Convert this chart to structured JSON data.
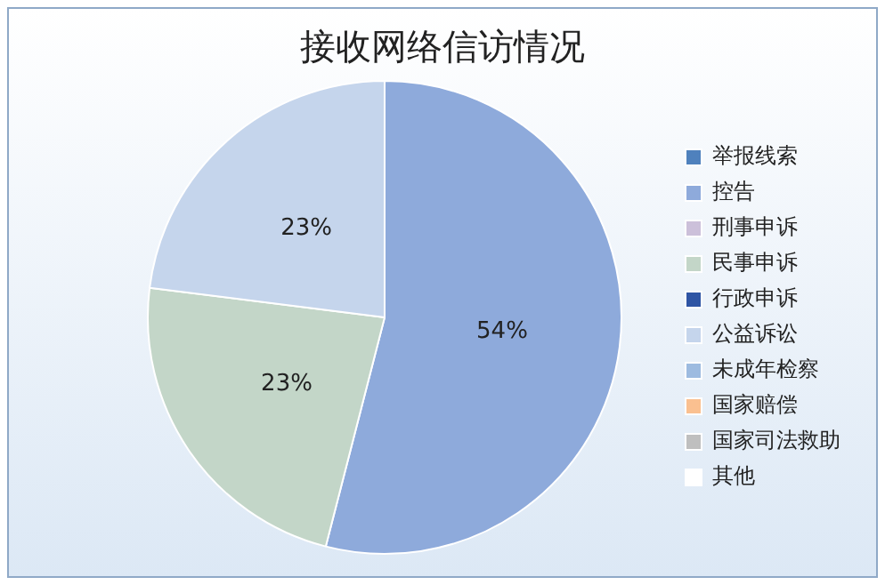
{
  "chart_data": {
    "type": "pie",
    "title": "接收网络信访情况",
    "categories": [
      "举报线索",
      "控告",
      "刑事申诉",
      "民事申诉",
      "行政申诉",
      "公益诉讼",
      "未成年检察",
      "国家赔偿",
      "国家司法救助",
      "其他"
    ],
    "values": [
      0,
      54,
      0,
      23,
      0,
      23,
      0,
      0,
      0,
      0
    ],
    "colors": [
      "#4f81bd",
      "#8eaadb",
      "#ccc0da",
      "#c3d6c8",
      "#2f55a4",
      "#c5d5ec",
      "#9dbbe0",
      "#fac090",
      "#bfbfbf",
      "#ffffff"
    ],
    "value_labels": [
      null,
      "54%",
      null,
      "23%",
      null,
      "23%",
      null,
      null,
      null,
      null
    ],
    "legend": "right"
  }
}
